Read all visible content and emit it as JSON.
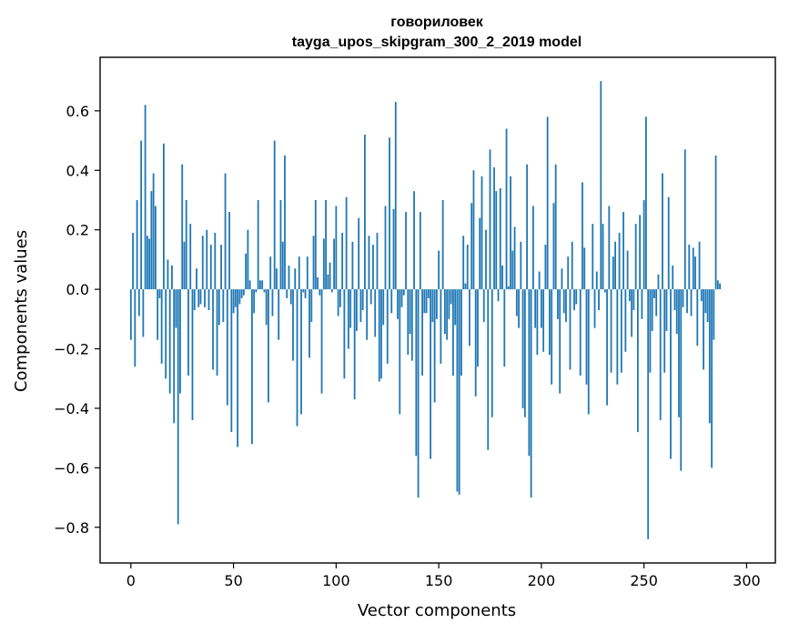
{
  "chart_data": {
    "type": "bar",
    "title": "говориловек",
    "subtitle": "tayga_upos_skipgram_300_2_2019 model",
    "xlabel": "Vector components",
    "ylabel": "Components values",
    "xlim": [
      -15,
      314
    ],
    "ylim": [
      -0.92,
      0.78
    ],
    "xticks": [
      0,
      50,
      100,
      150,
      200,
      250,
      300
    ],
    "xtick_labels": [
      "0",
      "50",
      "100",
      "150",
      "200",
      "250",
      "300"
    ],
    "yticks": [
      -0.8,
      -0.6,
      -0.4,
      -0.2,
      0.0,
      0.2,
      0.4,
      0.6
    ],
    "ytick_labels": [
      "−0.8",
      "−0.6",
      "−0.4",
      "−0.2",
      "0.0",
      "0.2",
      "0.4",
      "0.6"
    ],
    "color": "#1f77b4",
    "grid": false,
    "values": [
      -0.17,
      0.19,
      -0.26,
      0.3,
      -0.09,
      0.5,
      -0.16,
      0.62,
      0.18,
      0.17,
      0.33,
      0.39,
      0.28,
      -0.17,
      -0.03,
      -0.25,
      0.49,
      -0.3,
      0.1,
      -0.35,
      0.08,
      -0.45,
      -0.13,
      -0.79,
      -0.35,
      0.42,
      0.16,
      0.3,
      -0.29,
      0.22,
      -0.44,
      -0.07,
      0.07,
      -0.06,
      -0.05,
      0.18,
      -0.06,
      0.2,
      -0.07,
      0.15,
      -0.27,
      0.19,
      -0.29,
      -0.12,
      0.15,
      -0.11,
      0.39,
      -0.39,
      0.26,
      -0.48,
      -0.08,
      -0.06,
      -0.53,
      -0.05,
      -0.03,
      -0.02,
      0.12,
      0.2,
      0.03,
      -0.52,
      -0.08,
      -0.01,
      0.3,
      0.03,
      0.03,
      -0.01,
      -0.12,
      -0.38,
      0.11,
      -0.09,
      0.5,
      0.07,
      -0.17,
      0.3,
      0.16,
      0.45,
      -0.03,
      0.08,
      -0.05,
      -0.24,
      0.07,
      -0.46,
      0.11,
      -0.42,
      -0.01,
      -0.03,
      0.11,
      -0.23,
      -0.11,
      0.18,
      0.3,
      0.04,
      -0.02,
      -0.35,
      0.17,
      0.3,
      0.05,
      0.09,
      -0.01,
      0.17,
      0.28,
      -0.09,
      -0.06,
      0.19,
      -0.3,
      0.31,
      -0.2,
      -0.13,
      0.16,
      -0.37,
      -0.14,
      0.24,
      -0.11,
      -0.07,
      0.52,
      -0.17,
      0.18,
      -0.05,
      0.15,
      -0.16,
      0.19,
      -0.31,
      -0.3,
      -0.12,
      0.28,
      -0.25,
      0.51,
      -0.08,
      0.27,
      0.63,
      -0.1,
      -0.42,
      -0.06,
      -0.02,
      0.26,
      -0.22,
      -0.15,
      -0.24,
      0.33,
      -0.56,
      -0.7,
      0.26,
      -0.29,
      -0.08,
      -0.08,
      -0.03,
      -0.57,
      -0.11,
      -0.38,
      -0.1,
      0.13,
      -0.25,
      0.3,
      -0.15,
      -0.17,
      -0.1,
      -0.05,
      -0.29,
      -0.12,
      -0.68,
      -0.69,
      -0.29,
      0.18,
      0.02,
      0.15,
      -0.19,
      0.29,
      0.4,
      -0.36,
      -0.26,
      0.24,
      0.38,
      -0.11,
      0.2,
      -0.54,
      0.47,
      -0.43,
      0.41,
      0.33,
      -0.04,
      0.34,
      0.08,
      -0.26,
      0.54,
      0.01,
      0.38,
      0.13,
      0.21,
      -0.09,
      -0.13,
      0.16,
      -0.4,
      -0.43,
      0.42,
      -0.56,
      -0.7,
      0.28,
      -0.13,
      -0.22,
      0.06,
      -0.13,
      -0.21,
      0.15,
      0.58,
      -0.22,
      -0.32,
      0.29,
      0.42,
      -0.1,
      -0.35,
      0.07,
      -0.08,
      -0.11,
      0.11,
      -0.27,
      0.16,
      -0.07,
      -0.05,
      0.0,
      -0.29,
      0.36,
      0.14,
      -0.32,
      -0.42,
      0.0,
      0.22,
      -0.13,
      0.06,
      -0.07,
      0.7,
      0.22,
      -0.01,
      -0.39,
      0.28,
      -0.28,
      0.11,
      0.16,
      -0.32,
      0.19,
      -0.28,
      0.26,
      -0.21,
      0.13,
      -0.04,
      -0.16,
      -0.07,
      0.22,
      -0.48,
      0.25,
      -0.1,
      0.3,
      0.58,
      -0.84,
      -0.28,
      -0.14,
      -0.03,
      -0.09,
      0.05,
      -0.44,
      0.39,
      -0.28,
      -0.14,
      0.31,
      -0.57,
      0.08,
      -0.07,
      -0.15,
      -0.43,
      -0.61,
      -0.06,
      0.47,
      -0.08,
      0.15,
      -0.09,
      0.14,
      0.11,
      -0.19,
      0.16,
      -0.04,
      -0.27,
      -0.08,
      -0.11,
      -0.45,
      -0.6,
      -0.17,
      0.45,
      0.03,
      0.02
    ]
  }
}
